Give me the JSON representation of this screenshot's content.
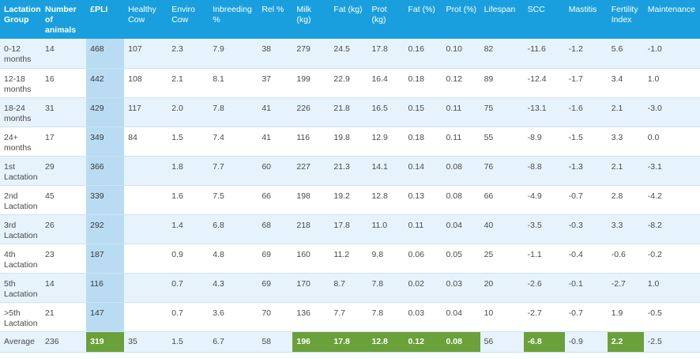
{
  "headers": [
    "Lactation Group",
    "Number of animals",
    "£PLI",
    "Healthy Cow",
    "Enviro Cow",
    "Inbreeding %",
    "Rel %",
    "Milk (kg)",
    "Fat (kg)",
    "Prot (kg)",
    "Fat (%)",
    "Prot (%)",
    "Lifespan",
    "SCC",
    "Mastitis",
    "Fertility Index",
    "Maintenance"
  ],
  "rows": [
    [
      "0-12 months",
      "14",
      "468",
      "107",
      "2.3",
      "7.9",
      "38",
      "279",
      "24.5",
      "17.8",
      "0.16",
      "0.10",
      "82",
      "-11.6",
      "-1.2",
      "5.6",
      "-1.0"
    ],
    [
      "12-18 months",
      "16",
      "442",
      "108",
      "2.1",
      "8.1",
      "37",
      "199",
      "22.9",
      "16.4",
      "0.18",
      "0.12",
      "89",
      "-12.4",
      "-1.7",
      "3.4",
      "1.0"
    ],
    [
      "18-24 months",
      "31",
      "429",
      "117",
      "2.0",
      "7.8",
      "41",
      "226",
      "21.8",
      "16.5",
      "0.15",
      "0.11",
      "75",
      "-13.1",
      "-1.6",
      "2.1",
      "-3.0"
    ],
    [
      "24+ months",
      "17",
      "349",
      "84",
      "1.5",
      "7.4",
      "41",
      "116",
      "19.8",
      "12.9",
      "0.18",
      "0.11",
      "55",
      "-8.9",
      "-1.5",
      "3.3",
      "0.0"
    ],
    [
      "1st Lactation",
      "29",
      "366",
      "",
      "1.8",
      "7.7",
      "60",
      "227",
      "21.3",
      "14.1",
      "0.14",
      "0.08",
      "76",
      "-8.8",
      "-1.3",
      "2.1",
      "-3.1"
    ],
    [
      "2nd Lactation",
      "45",
      "339",
      "",
      "1.6",
      "7.5",
      "66",
      "198",
      "19.2",
      "12.8",
      "0.13",
      "0.08",
      "66",
      "-4.9",
      "-0.7",
      "2.8",
      "-4.2"
    ],
    [
      "3rd Lactation",
      "26",
      "292",
      "",
      "1.4",
      "6.8",
      "68",
      "218",
      "17.8",
      "11.0",
      "0.11",
      "0.04",
      "40",
      "-3.5",
      "-0.3",
      "3.3",
      "-8.2"
    ],
    [
      "4th Lactation",
      "23",
      "187",
      "",
      "0.9",
      "4.8",
      "69",
      "160",
      "11.2",
      "9.8",
      "0.06",
      "0.05",
      "25",
      "-1.1",
      "-0.4",
      "-0.6",
      "-0.2"
    ],
    [
      "5th Lactation",
      "14",
      "116",
      "",
      "0.7",
      "4.3",
      "69",
      "170",
      "8.7",
      "7.8",
      "0.02",
      "0.03",
      "20",
      "-2.6",
      "-0.1",
      "-2.7",
      "1.0"
    ],
    [
      ">5th Lactation",
      "21",
      "147",
      "",
      "0.7",
      "3.6",
      "70",
      "136",
      "7.7",
      "7.8",
      "0.03",
      "0.04",
      "10",
      "-2.7",
      "-0.7",
      "1.9",
      "-0.5"
    ]
  ],
  "average": [
    "Average",
    "236",
    "319",
    "35",
    "1.5",
    "6.7",
    "58",
    "196",
    "17.8",
    "12.8",
    "0.12",
    "0.08",
    "56",
    "-6.8",
    "-0.9",
    "2.2",
    "-2.5"
  ],
  "average_highlight_cols": [
    2,
    7,
    8,
    9,
    10,
    11,
    13,
    15
  ],
  "colors": {
    "header_bg": "#1a9fde",
    "pli_col": "#b9dcf3",
    "row_alt": "#e7f3fc",
    "highlight": "#6aa13a"
  }
}
